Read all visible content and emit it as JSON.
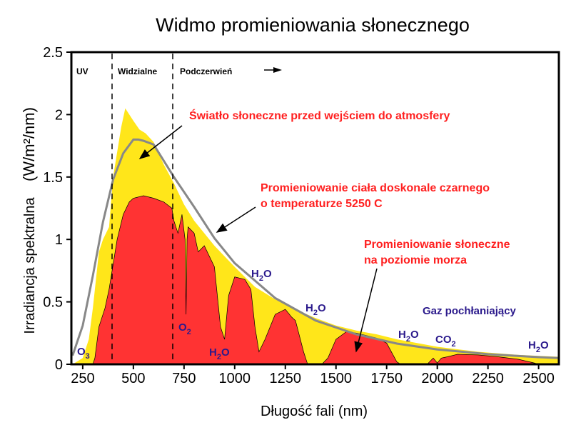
{
  "chart_data": {
    "type": "area",
    "title": "Widmo promieniowania słonecznego",
    "xlabel": "Długość fali (nm)",
    "ylabel": "Irradiancja spektralna",
    "ylabel_unit": "(W/m²/nm)",
    "xlim": [
      194,
      2600
    ],
    "ylim": [
      0,
      2.5
    ],
    "xticks": [
      250,
      500,
      750,
      1000,
      1250,
      1500,
      1750,
      2000,
      2250,
      2500
    ],
    "yticks": [
      0,
      0.5,
      1,
      1.5,
      2,
      2.5
    ],
    "ytick_labels": [
      "0",
      "0.5",
      "1",
      "1.5",
      "2",
      "2.5"
    ],
    "grid": false,
    "regions": [
      {
        "label": "UV",
        "boundary": 400
      },
      {
        "label": "Widzialne",
        "boundary": 700
      },
      {
        "label": "Podczerwień"
      }
    ],
    "series": [
      {
        "name": "Światło słoneczne przed wejściem do atmosfery",
        "color": "#ffe61a",
        "x": [
          200,
          250,
          280,
          300,
          330,
          350,
          380,
          400,
          420,
          440,
          460,
          480,
          500,
          530,
          560,
          600,
          650,
          700,
          750,
          800,
          900,
          1000,
          1100,
          1200,
          1300,
          1400,
          1500,
          1600,
          1700,
          1800,
          2000,
          2200,
          2400,
          2600
        ],
        "y": [
          0,
          0.05,
          0.2,
          0.45,
          0.9,
          1.0,
          1.1,
          1.5,
          1.7,
          1.9,
          2.05,
          2.0,
          1.95,
          1.88,
          1.85,
          1.78,
          1.6,
          1.45,
          1.28,
          1.15,
          0.95,
          0.78,
          0.62,
          0.52,
          0.44,
          0.37,
          0.31,
          0.27,
          0.24,
          0.2,
          0.14,
          0.1,
          0.075,
          0.06
        ]
      },
      {
        "name": "Promieniowanie słoneczne na poziomie morza",
        "color": "#ff3333",
        "x": [
          200,
          300,
          310,
          330,
          360,
          380,
          400,
          420,
          450,
          480,
          500,
          550,
          600,
          650,
          690,
          700,
          720,
          740,
          755,
          760,
          765,
          770,
          800,
          820,
          850,
          900,
          930,
          950,
          970,
          1000,
          1050,
          1080,
          1100,
          1120,
          1150,
          1200,
          1250,
          1280,
          1300,
          1340,
          1360,
          1430,
          1460,
          1500,
          1550,
          1600,
          1700,
          1750,
          1800,
          1820,
          1950,
          1980,
          2000,
          2020,
          2050,
          2100,
          2200,
          2300,
          2400,
          2480,
          2500,
          2600
        ],
        "y": [
          0,
          0,
          0.05,
          0.3,
          0.45,
          0.6,
          0.8,
          1.0,
          1.2,
          1.3,
          1.33,
          1.35,
          1.33,
          1.3,
          1.25,
          1.15,
          1.05,
          1.2,
          1.0,
          0.4,
          1.0,
          1.1,
          1.05,
          0.9,
          0.95,
          0.78,
          0.3,
          0.2,
          0.55,
          0.7,
          0.68,
          0.6,
          0.3,
          0.1,
          0.2,
          0.4,
          0.44,
          0.38,
          0.35,
          0.1,
          0,
          0,
          0.05,
          0.2,
          0.26,
          0.25,
          0.21,
          0.17,
          0.02,
          0,
          0,
          0.05,
          0.01,
          0.05,
          0.06,
          0.08,
          0.075,
          0.06,
          0.04,
          0.01,
          0,
          0
        ]
      },
      {
        "name": "Promieniowanie ciała doskonale czarnego o temperaturze 5250 C",
        "color": "#888888",
        "x": [
          200,
          250,
          300,
          350,
          400,
          450,
          500,
          525,
          550,
          600,
          700,
          800,
          900,
          1000,
          1200,
          1400,
          1600,
          1800,
          2000,
          2250,
          2500,
          2600
        ],
        "y": [
          0.07,
          0.31,
          0.71,
          1.14,
          1.48,
          1.69,
          1.8,
          1.8,
          1.79,
          1.76,
          1.5,
          1.26,
          1.01,
          0.81,
          0.53,
          0.35,
          0.24,
          0.166,
          0.119,
          0.081,
          0.057,
          0.05
        ]
      }
    ],
    "annotations": {
      "extraterrestrial": "Światło słoneczne przed wejściem do atmosfery",
      "blackbody_1": "Promieniowanie ciała doskonale czarnego",
      "blackbody_2": "o temperaturze 5250   C",
      "sealevel_1": "Promieniowanie słoneczne",
      "sealevel_2": "na poziomie morza",
      "gas_title": "Gaz pochłaniający"
    },
    "gases": [
      {
        "base": "O",
        "sub": "3"
      },
      {
        "base": "O",
        "sub": "2"
      },
      {
        "base": "H",
        "sub": "2",
        "tail": "O"
      },
      {
        "base": "H",
        "sub": "2",
        "tail": "O"
      },
      {
        "base": "H",
        "sub": "2",
        "tail": "O"
      },
      {
        "base": "H",
        "sub": "2",
        "tail": "O"
      },
      {
        "base": "CO",
        "sub": "2"
      },
      {
        "base": "H",
        "sub": "2",
        "tail": "O"
      }
    ]
  }
}
